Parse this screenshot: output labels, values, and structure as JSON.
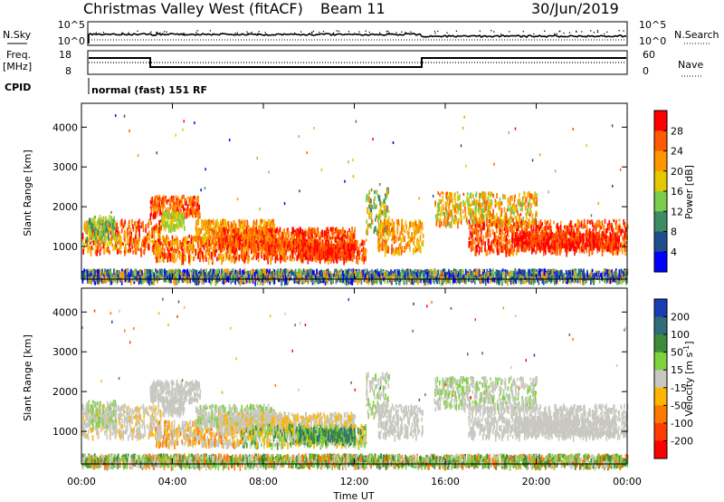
{
  "header": {
    "station": "Christmas Valley West (fitACF)",
    "beam": "Beam 11",
    "date": "30/Jun/2019"
  },
  "top_panels": {
    "nsky_label": "N.Sky",
    "nsky_ticks": [
      "10^5",
      "10^0"
    ],
    "nsearch_label": "N.Search",
    "nsearch_ticks": [
      "10^5",
      "10^0"
    ],
    "freq_label_1": "Freq.",
    "freq_label_2": "[MHz]",
    "freq_ticks": [
      18,
      8
    ],
    "nave_label": "Nave",
    "nave_ticks": [
      60,
      0
    ],
    "cpid_label": "CPID",
    "cpid_text": "normal (fast) 151 RF"
  },
  "chart_data": [
    {
      "type": "heatmap",
      "title": "Power",
      "ylabel": "Slant Range [km]",
      "xlabel": "Time UT",
      "ylim": [
        180,
        4600
      ],
      "x_ticks": [
        "00:00",
        "04:00",
        "08:00",
        "12:00",
        "16:00",
        "20:00",
        "00:00"
      ],
      "y_ticks": [
        1000,
        2000,
        3000,
        4000
      ],
      "colorbar": {
        "label": "Power [dB]",
        "ticks": [
          28,
          24,
          20,
          16,
          12,
          8,
          4
        ],
        "colors": [
          "#ff0000",
          "#ff5a00",
          "#ff9600",
          "#e6c800",
          "#7acc4a",
          "#3e8c66",
          "#1f4e8f",
          "#0000ff"
        ]
      }
    },
    {
      "type": "heatmap",
      "title": "Velocity",
      "ylabel": "Slant Range [km]",
      "xlabel": "Time UT",
      "ylim": [
        180,
        4600
      ],
      "x_ticks": [
        "00:00",
        "04:00",
        "08:00",
        "12:00",
        "16:00",
        "20:00",
        "00:00"
      ],
      "y_ticks": [
        1000,
        2000,
        3000,
        4000
      ],
      "colorbar": {
        "label": "Velocity [m s^-1]",
        "ticks": [
          200,
          100,
          50,
          15,
          -15,
          -50,
          -100,
          -200
        ],
        "colors": [
          "#1a3cb4",
          "#2e6e7a",
          "#3e8c3a",
          "#7fd23c",
          "#c8c8c0",
          "#ffb400",
          "#ff7800",
          "#ff3c00",
          "#ff0000"
        ]
      }
    }
  ],
  "time_axis": {
    "ticks": [
      "00:00",
      "04:00",
      "08:00",
      "12:00",
      "16:00",
      "20:00",
      "00:00"
    ],
    "label": "Time UT"
  }
}
